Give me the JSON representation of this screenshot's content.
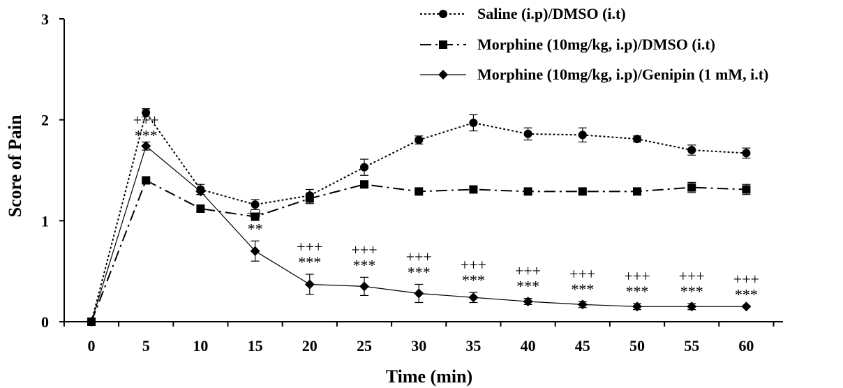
{
  "chart_data": {
    "type": "line",
    "xlabel": "Time (min)",
    "ylabel": "Score of Pain",
    "xlim": [
      0,
      60
    ],
    "ylim": [
      0,
      3
    ],
    "x": [
      0,
      5,
      10,
      15,
      20,
      25,
      30,
      35,
      40,
      45,
      50,
      55,
      60
    ],
    "xticks": [
      "0",
      "5",
      "10",
      "15",
      "20",
      "25",
      "30",
      "35",
      "40",
      "45",
      "50",
      "55",
      "60"
    ],
    "yticks": [
      "0",
      "1",
      "2",
      "3"
    ],
    "grid": false,
    "legend_position": "top-right",
    "series": [
      {
        "name": "Saline (i.p)/DMSO (i.t)",
        "marker": "circle",
        "line": "dotted",
        "values": [
          0.0,
          2.07,
          1.31,
          1.16,
          1.25,
          1.53,
          1.8,
          1.97,
          1.86,
          1.85,
          1.81,
          1.7,
          1.67
        ],
        "errors": [
          0.0,
          0.04,
          0.05,
          0.05,
          0.06,
          0.08,
          0.04,
          0.08,
          0.06,
          0.07,
          0.03,
          0.05,
          0.05
        ]
      },
      {
        "name": "Morphine (10mg/kg, i.p)/DMSO (i.t)",
        "marker": "square",
        "line": "dash-dot",
        "values": [
          0.0,
          1.4,
          1.12,
          1.04,
          1.22,
          1.36,
          1.29,
          1.31,
          1.29,
          1.29,
          1.29,
          1.33,
          1.31
        ],
        "errors": [
          0.0,
          0.02,
          0.02,
          0.02,
          0.05,
          0.03,
          0.02,
          0.02,
          0.02,
          0.02,
          0.02,
          0.05,
          0.05
        ]
      },
      {
        "name": "Morphine (10mg/kg, i.p)/Genipin (1 mM, i.t)",
        "marker": "diamond",
        "line": "solid",
        "values": [
          0.0,
          1.74,
          1.29,
          0.7,
          0.37,
          0.35,
          0.28,
          0.24,
          0.2,
          0.17,
          0.15,
          0.15,
          0.15
        ],
        "errors": [
          0.0,
          0.04,
          0.03,
          0.1,
          0.1,
          0.09,
          0.09,
          0.05,
          0.03,
          0.03,
          0.03,
          0.03,
          0.0
        ]
      }
    ],
    "annotations": [
      {
        "x": 5,
        "top": "+++",
        "bottom": "***"
      },
      {
        "x": 15,
        "top": "++",
        "bottom": "**"
      },
      {
        "x": 20,
        "top": "+++",
        "bottom": "***"
      },
      {
        "x": 25,
        "top": "+++",
        "bottom": "***"
      },
      {
        "x": 30,
        "top": "+++",
        "bottom": "***"
      },
      {
        "x": 35,
        "top": "+++",
        "bottom": "***"
      },
      {
        "x": 40,
        "top": "+++",
        "bottom": "***"
      },
      {
        "x": 45,
        "top": "+++",
        "bottom": "***"
      },
      {
        "x": 50,
        "top": "+++",
        "bottom": "***"
      },
      {
        "x": 55,
        "top": "+++",
        "bottom": "***"
      },
      {
        "x": 60,
        "top": "+++",
        "bottom": "***"
      }
    ]
  }
}
